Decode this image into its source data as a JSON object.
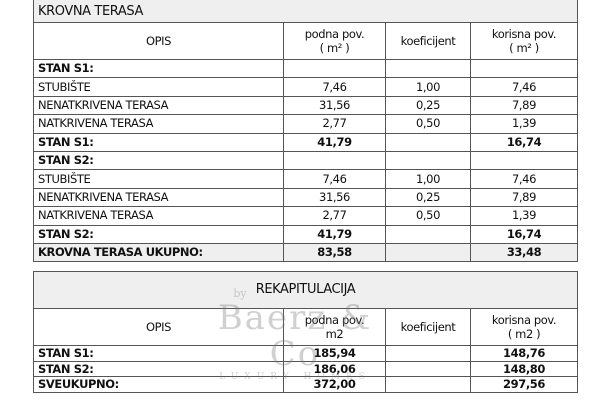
{
  "table1": {
    "title": "KROVNA TERASA",
    "headers": [
      "OPIS",
      "podna pov.\n( m² )",
      "koeficijent",
      "korisna pov.\n( m² )"
    ],
    "rows": [
      {
        "cells": [
          "STAN S1:",
          "",
          "",
          ""
        ],
        "style": "bold"
      },
      {
        "cells": [
          "STUBIŠTE",
          "7,46",
          "1,00",
          "7,46"
        ],
        "style": ""
      },
      {
        "cells": [
          "NENATKRIVENA TERASA",
          "31,56",
          "0,25",
          "7,89"
        ],
        "style": ""
      },
      {
        "cells": [
          "NATKRIVENA TERASA",
          "2,77",
          "0,50",
          "1,39"
        ],
        "style": ""
      },
      {
        "cells": [
          "STAN S1:",
          "41,79",
          "",
          "16,74"
        ],
        "style": "bold"
      },
      {
        "cells": [
          "STAN S2:",
          "",
          "",
          ""
        ],
        "style": "bold"
      },
      {
        "cells": [
          "STUBIŠTE",
          "7,46",
          "1,00",
          "7,46"
        ],
        "style": ""
      },
      {
        "cells": [
          "NENATKRIVENA TERASA",
          "31,56",
          "0,25",
          "7,89"
        ],
        "style": ""
      },
      {
        "cells": [
          "NATKRIVENA TERASA",
          "2,77",
          "0,50",
          "1,39"
        ],
        "style": ""
      },
      {
        "cells": [
          "STAN S2:",
          "41,79",
          "",
          "16,74"
        ],
        "style": "bold"
      },
      {
        "cells": [
          "KROVNA TERASA UKUPNO:",
          "83,58",
          "",
          "33,48"
        ],
        "style": "grey"
      }
    ]
  },
  "table2": {
    "title": "REKAPITULACIJA",
    "headers": [
      "OPIS",
      "podna pov.\nm2",
      "koeficijent",
      "korisna pov.\n( m2 )"
    ],
    "rows": [
      {
        "cells": [
          "STAN S1:",
          "185,94",
          "",
          "148,76"
        ],
        "style": "bold"
      },
      {
        "cells": [
          "STAN S2:",
          "186,06",
          "",
          "148,80"
        ],
        "style": "bold"
      },
      {
        "cells": [
          "SVEUKUPNO:",
          "372,00",
          "",
          "297,56"
        ],
        "style": "bold"
      }
    ]
  },
  "watermark": {
    "by": "by",
    "name": "Baerz & Co",
    "tagline": "LUXURY HOMES"
  }
}
